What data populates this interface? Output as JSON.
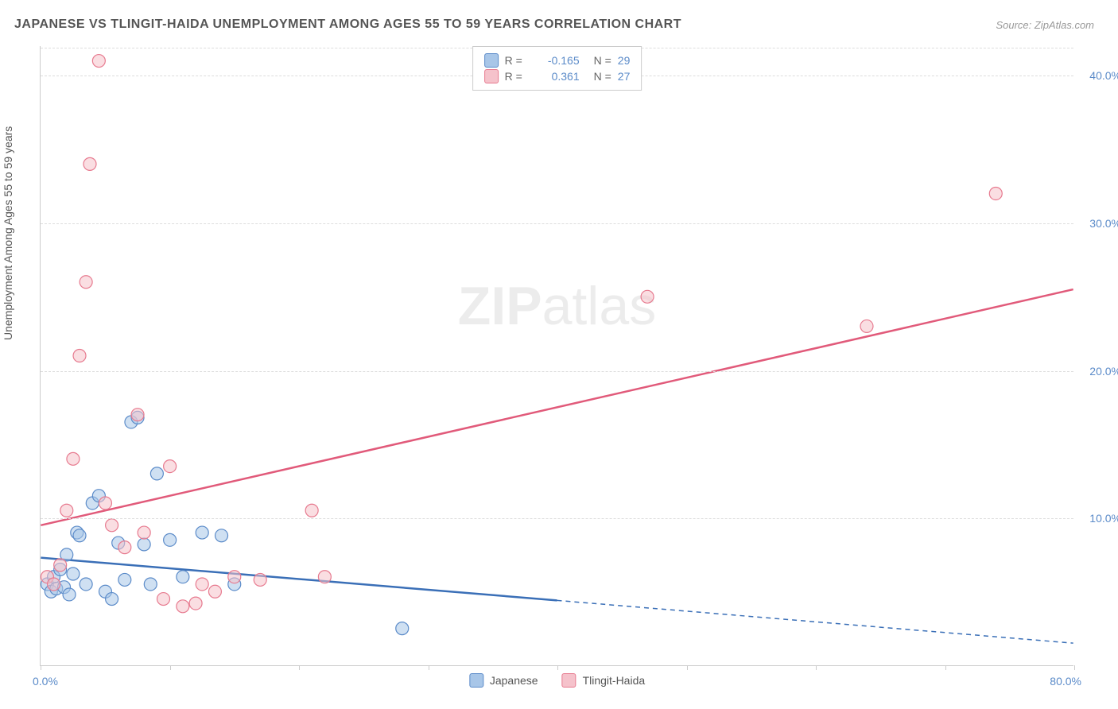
{
  "title": "JAPANESE VS TLINGIT-HAIDA UNEMPLOYMENT AMONG AGES 55 TO 59 YEARS CORRELATION CHART",
  "source": "Source: ZipAtlas.com",
  "ylabel": "Unemployment Among Ages 55 to 59 years",
  "watermark_bold": "ZIP",
  "watermark_rest": "atlas",
  "chart": {
    "type": "scatter",
    "xlim": [
      0,
      80
    ],
    "ylim": [
      0,
      42
    ],
    "x_tick_positions": [
      0,
      10,
      20,
      30,
      40,
      50,
      60,
      70,
      80
    ],
    "x_tick_labels_shown": {
      "0": "0.0%",
      "80": "80.0%"
    },
    "y_gridlines": [
      10,
      20,
      30,
      40
    ],
    "y_tick_labels": {
      "10": "10.0%",
      "20": "20.0%",
      "30": "30.0%",
      "40": "40.0%"
    },
    "background_color": "#ffffff",
    "grid_color": "#dddddd",
    "axis_color": "#cccccc",
    "tick_label_color": "#5b8bc9",
    "marker_radius": 8,
    "marker_opacity": 0.55,
    "series": [
      {
        "name": "Japanese",
        "fill": "#a8c6e8",
        "stroke": "#5b8bc9",
        "line_color": "#3a6fb7",
        "line_width": 2.5,
        "line_dash_after_x": 40,
        "R": -0.165,
        "N": 29,
        "regression": {
          "x1": 0,
          "y1": 7.3,
          "x2": 80,
          "y2": 1.5
        },
        "points": [
          [
            0.5,
            5.5
          ],
          [
            0.8,
            5.0
          ],
          [
            1.0,
            6.0
          ],
          [
            1.2,
            5.2
          ],
          [
            1.5,
            6.5
          ],
          [
            1.8,
            5.3
          ],
          [
            2.0,
            7.5
          ],
          [
            2.2,
            4.8
          ],
          [
            2.5,
            6.2
          ],
          [
            2.8,
            9.0
          ],
          [
            3.0,
            8.8
          ],
          [
            3.5,
            5.5
          ],
          [
            4.0,
            11.0
          ],
          [
            4.5,
            11.5
          ],
          [
            5.0,
            5.0
          ],
          [
            5.5,
            4.5
          ],
          [
            6.0,
            8.3
          ],
          [
            6.5,
            5.8
          ],
          [
            7.0,
            16.5
          ],
          [
            7.5,
            16.8
          ],
          [
            8.0,
            8.2
          ],
          [
            8.5,
            5.5
          ],
          [
            9.0,
            13.0
          ],
          [
            10.0,
            8.5
          ],
          [
            11.0,
            6.0
          ],
          [
            12.5,
            9.0
          ],
          [
            14.0,
            8.8
          ],
          [
            15.0,
            5.5
          ],
          [
            28.0,
            2.5
          ]
        ]
      },
      {
        "name": "Tlingit-Haida",
        "fill": "#f5c2cb",
        "stroke": "#e77a8f",
        "line_color": "#e15a7a",
        "line_width": 2.5,
        "R": 0.361,
        "N": 27,
        "regression": {
          "x1": 0,
          "y1": 9.5,
          "x2": 80,
          "y2": 25.5
        },
        "points": [
          [
            0.5,
            6.0
          ],
          [
            1.0,
            5.5
          ],
          [
            1.5,
            6.8
          ],
          [
            2.0,
            10.5
          ],
          [
            2.5,
            14.0
          ],
          [
            3.0,
            21.0
          ],
          [
            3.5,
            26.0
          ],
          [
            3.8,
            34.0
          ],
          [
            4.5,
            41.0
          ],
          [
            5.0,
            11.0
          ],
          [
            5.5,
            9.5
          ],
          [
            6.5,
            8.0
          ],
          [
            7.5,
            17.0
          ],
          [
            8.0,
            9.0
          ],
          [
            9.5,
            4.5
          ],
          [
            10.0,
            13.5
          ],
          [
            11.0,
            4.0
          ],
          [
            12.0,
            4.2
          ],
          [
            12.5,
            5.5
          ],
          [
            13.5,
            5.0
          ],
          [
            15.0,
            6.0
          ],
          [
            17.0,
            5.8
          ],
          [
            21.0,
            10.5
          ],
          [
            22.0,
            6.0
          ],
          [
            47.0,
            25.0
          ],
          [
            64.0,
            23.0
          ],
          [
            74.0,
            32.0
          ]
        ]
      }
    ]
  },
  "legend_top": [
    {
      "swatch_fill": "#a8c6e8",
      "swatch_stroke": "#5b8bc9",
      "R_text": "-0.165",
      "N_text": "29"
    },
    {
      "swatch_fill": "#f5c2cb",
      "swatch_stroke": "#e77a8f",
      "R_text": "0.361",
      "N_text": "27"
    }
  ],
  "legend_top_labels": {
    "R": "R =",
    "N": "N ="
  },
  "legend_bottom": [
    {
      "swatch_fill": "#a8c6e8",
      "swatch_stroke": "#5b8bc9",
      "label": "Japanese"
    },
    {
      "swatch_fill": "#f5c2cb",
      "swatch_stroke": "#e77a8f",
      "label": "Tlingit-Haida"
    }
  ]
}
